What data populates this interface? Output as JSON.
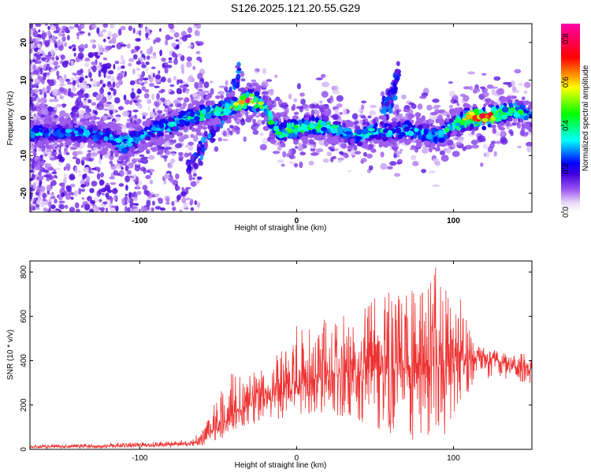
{
  "title": "S126.2025.121.20.55.G29",
  "chart_data": [
    {
      "type": "heatmap",
      "xlabel": "Height of straight line (km)",
      "ylabel": "Frequency (Hz)",
      "xlim": [
        -170,
        150
      ],
      "ylim": [
        -25,
        25
      ],
      "xticks": [
        -100,
        0,
        100
      ],
      "xticklabels": [
        "-100",
        "0",
        "100"
      ],
      "yticks": [
        20,
        10,
        0,
        -10,
        -20
      ],
      "yticklabels": [
        "20",
        "10",
        "0",
        "-10",
        "-20"
      ],
      "colorbar": {
        "label": "Normalized spectral amplitude",
        "range": [
          0.0,
          0.87
        ],
        "ticks": [
          0.0,
          0.2,
          0.4,
          0.6,
          0.8
        ],
        "ticklabels": [
          "0.0",
          "0.2",
          "0.4",
          "0.6",
          "0.8"
        ]
      },
      "ridge": {
        "x": [
          -170,
          -150,
          -135,
          -120,
          -110,
          -100,
          -90,
          -80,
          -70,
          -60,
          -50,
          -40,
          -35,
          -30,
          -25,
          -20,
          -15,
          -10,
          -5,
          0,
          10,
          20,
          30,
          40,
          50,
          60,
          70,
          80,
          90,
          100,
          110,
          120,
          130,
          140,
          150
        ],
        "freq": [
          -4,
          -4,
          -4,
          -5,
          -7,
          -5,
          -3,
          -2,
          0,
          1,
          2,
          3,
          4,
          5,
          4,
          3,
          -2,
          -4,
          -3,
          -3,
          -2,
          -2,
          -4,
          -5,
          -3,
          -4,
          -3,
          -4,
          -5,
          -2,
          0,
          0,
          1,
          2,
          0
        ],
        "peak": [
          0.35,
          0.3,
          0.35,
          0.3,
          0.45,
          0.3,
          0.35,
          0.4,
          0.35,
          0.45,
          0.45,
          0.5,
          0.65,
          0.8,
          0.6,
          0.45,
          0.5,
          0.45,
          0.5,
          0.45,
          0.5,
          0.45,
          0.35,
          0.35,
          0.4,
          0.35,
          0.35,
          0.35,
          0.35,
          0.4,
          0.75,
          0.85,
          0.55,
          0.45,
          0.4
        ]
      },
      "branches": [
        {
          "x": [
            -70,
            -60,
            -50,
            -40,
            -35
          ],
          "freq": [
            -13,
            -8,
            -2,
            8,
            14
          ]
        },
        {
          "x": [
            55,
            60,
            63,
            65
          ],
          "freq": [
            2,
            5,
            9,
            12
          ]
        }
      ]
    },
    {
      "type": "line",
      "xlabel": "Height of straight line (km)",
      "ylabel": "SNR (10 * v/v)",
      "xlim": [
        -170,
        150
      ],
      "ylim": [
        0,
        850
      ],
      "xticks": [
        -100,
        0,
        100
      ],
      "xticklabels": [
        "-100",
        "0",
        "100"
      ],
      "yticks": [
        0,
        200,
        400,
        600,
        800
      ],
      "yticklabels": [
        "0",
        "200",
        "400",
        "600",
        "800"
      ],
      "color": "#ee3333",
      "series": [
        {
          "x": [
            -170,
            -150,
            -130,
            -110,
            -90,
            -80,
            -70,
            -65,
            -60,
            -55,
            -50,
            -45,
            -40,
            -35,
            -30,
            -25,
            -20,
            -15,
            -10,
            -5,
            0,
            5,
            10,
            20,
            30,
            40,
            50,
            60,
            70,
            80,
            90,
            95,
            100,
            105,
            110,
            115,
            120,
            130,
            140,
            150
          ],
          "values": [
            12,
            12,
            13,
            15,
            18,
            20,
            25,
            30,
            40,
            70,
            100,
            130,
            160,
            180,
            200,
            215,
            230,
            240,
            250,
            260,
            280,
            300,
            320,
            340,
            350,
            360,
            360,
            365,
            370,
            375,
            380,
            385,
            390,
            400,
            410,
            420,
            420,
            400,
            370,
            370
          ],
          "envelope_high": [
            20,
            22,
            25,
            30,
            35,
            38,
            45,
            60,
            80,
            170,
            250,
            320,
            370,
            340,
            360,
            360,
            390,
            420,
            470,
            500,
            560,
            560,
            590,
            600,
            630,
            660,
            700,
            740,
            720,
            780,
            840,
            720,
            720,
            700,
            540,
            470,
            460,
            440,
            430,
            450
          ],
          "envelope_low": [
            5,
            5,
            5,
            6,
            8,
            10,
            12,
            14,
            18,
            30,
            40,
            60,
            90,
            100,
            110,
            110,
            120,
            130,
            140,
            150,
            150,
            150,
            160,
            140,
            140,
            120,
            100,
            60,
            30,
            30,
            20,
            40,
            120,
            220,
            260,
            280,
            300,
            320,
            300,
            290
          ]
        }
      ]
    }
  ]
}
